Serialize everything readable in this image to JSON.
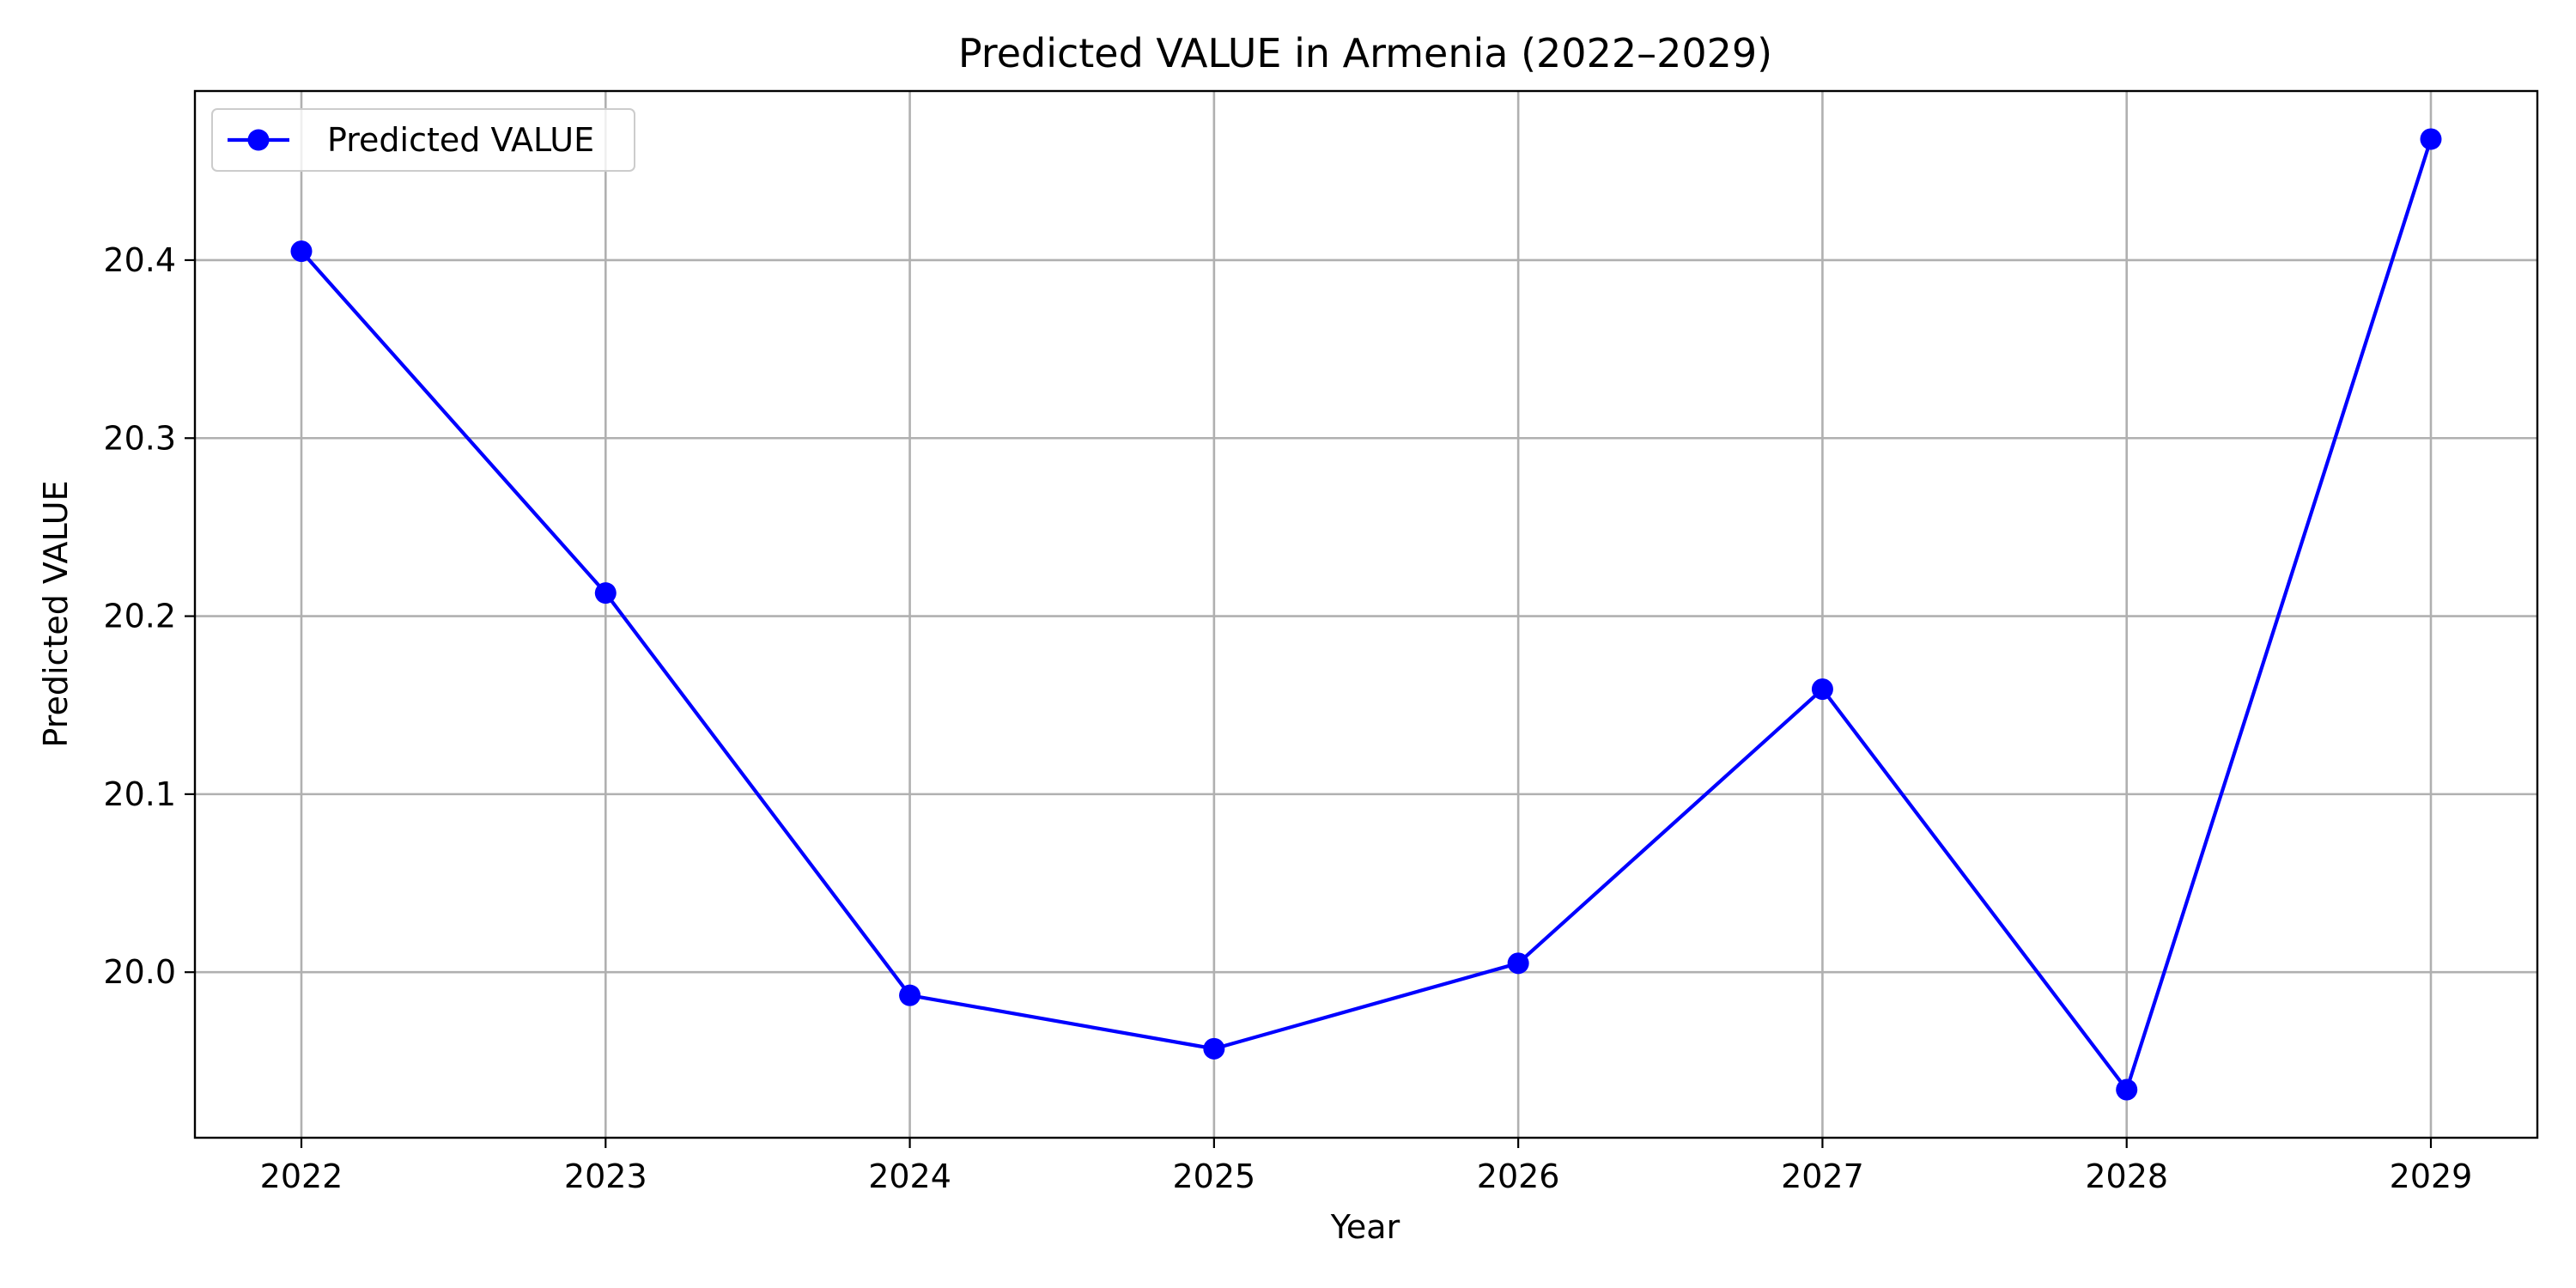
{
  "chart_data": {
    "type": "line",
    "title": "Predicted VALUE in Armenia (2022–2029)",
    "xlabel": "Year",
    "ylabel": "Predicted VALUE",
    "x": [
      2022,
      2023,
      2024,
      2025,
      2026,
      2027,
      2028,
      2029
    ],
    "series": [
      {
        "name": "Predicted VALUE",
        "color": "#0000ff",
        "marker": "circle",
        "values": [
          20.405,
          20.213,
          19.987,
          19.957,
          20.005,
          20.159,
          19.934,
          20.468
        ]
      }
    ],
    "xlim": [
      2021.65,
      2029.35
    ],
    "ylim": [
      19.907,
      20.495
    ],
    "xticks": [
      "2022",
      "2023",
      "2024",
      "2025",
      "2026",
      "2027",
      "2028",
      "2029"
    ],
    "yticks": [
      "20.0",
      "20.1",
      "20.2",
      "20.3",
      "20.4"
    ],
    "grid": true,
    "legend_position": "upper-left"
  }
}
